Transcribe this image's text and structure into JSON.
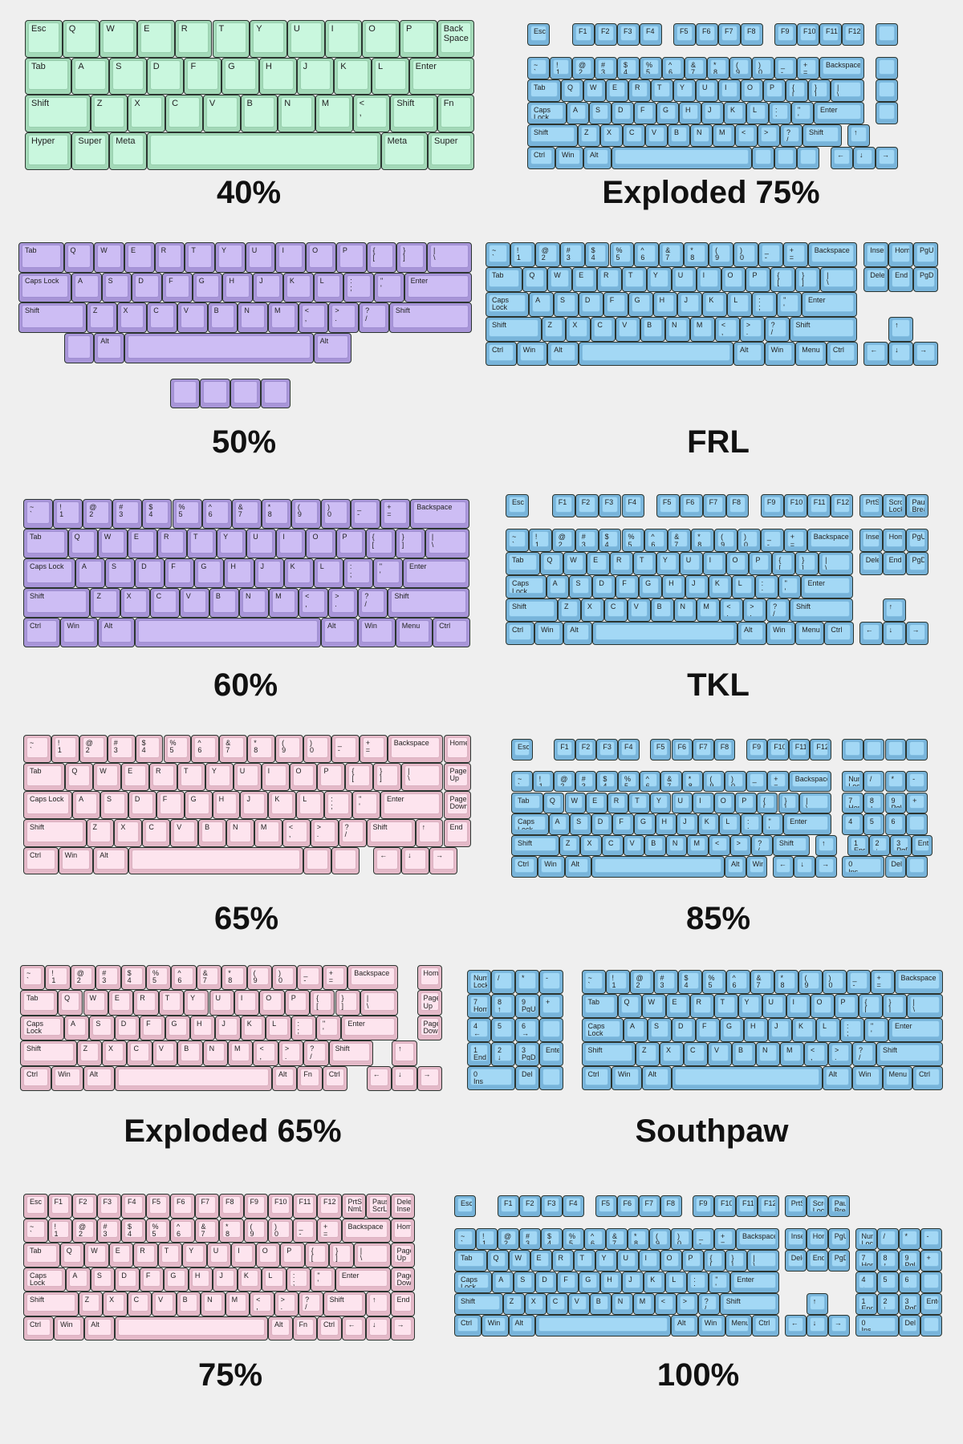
{
  "colors": {
    "green": "#c9f7de",
    "purple": "#cdbdf4",
    "blue": "#a3d8f5",
    "pink": "#fde4ee",
    "background": "#efefef"
  },
  "library": {
    "num": [
      "~\n`",
      "!\n1",
      "@\n2",
      "#\n3",
      "$\n4",
      "%\n5",
      "^\n6",
      "&\n7",
      "*\n8",
      "(\n9",
      ")\n0",
      "_\n-",
      "+\n="
    ],
    "top": [
      "Tab::1.5",
      "Q",
      "W",
      "E",
      "R",
      "T",
      "Y",
      "U",
      "I",
      "O",
      "P",
      "{\n[",
      "}\n]"
    ],
    "home": [
      "Caps Lock::1.75",
      "A",
      "S",
      "D",
      "F",
      "G",
      "H",
      "J",
      "K",
      "L",
      ":\n;",
      "\"\n'"
    ],
    "bot": [
      "Shift::2.25",
      "Z",
      "X",
      "C",
      "V",
      "B",
      "N",
      "M",
      "<\n,",
      ">\n.",
      "?\n/"
    ],
    "mods": [
      "Ctrl::1.25",
      "Win::1.25",
      "Alt::1.25",
      "::6.25",
      "Alt::1.25",
      "Win::1.25",
      "Menu::1.25",
      "Ctrl::1.25"
    ],
    "fn": [
      "Esc",
      "__1",
      "F1",
      "F2",
      "F3",
      "F4",
      "__0.5",
      "F5",
      "F6",
      "F7",
      "F8",
      "__0.5",
      "F9",
      "F10",
      "F11",
      "F12"
    ]
  },
  "keyboards": [
    {
      "title": "40%",
      "color": "green",
      "rows": [
        [
          "Esc",
          "Q",
          "W",
          "E",
          "R",
          "T",
          "Y",
          "U",
          "I",
          "O",
          "P",
          "Back\nSpace"
        ],
        [
          "Tab::1.25",
          "A",
          "S",
          "D",
          "F",
          "G",
          "H",
          "J",
          "K",
          "L",
          "Enter::1.75"
        ],
        [
          "Shift::1.75",
          "Z",
          "X",
          "C",
          "V",
          "B",
          "N",
          "M",
          "<\n,",
          "Shift::1.25",
          "Fn"
        ],
        [
          "Hyper::1.25",
          "Super",
          "Meta",
          "::6.25",
          "Meta::1.25",
          "Super::1.25"
        ]
      ]
    },
    {
      "title": "Exploded 75%",
      "color": "blue",
      "rows": [
        [
          "=>fn",
          "__0.5",
          ""
        ],
        0.5,
        [
          "=>num",
          "Backspace::2",
          "__0.5",
          ""
        ],
        [
          "=>top",
          "|\n\\::1.5",
          "__0.5",
          ""
        ],
        [
          "=>home",
          "Enter::2.25",
          "__0.5",
          ""
        ],
        [
          "=>bot",
          "Shift::1.75",
          "__0.25",
          "↑"
        ],
        [
          "Ctrl::1.25",
          "Win::1.25",
          "Alt::1.25",
          "::6.25",
          "",
          "",
          "",
          "__0.5",
          "←",
          "↓",
          "→"
        ]
      ]
    },
    {
      "title": "50%",
      "color": "purple",
      "rows": [
        [
          "=>top",
          "|\n\\::1.5"
        ],
        [
          "=>home",
          "Enter::2.25"
        ],
        [
          "=>bot",
          "Shift::2.75"
        ],
        [
          "__1.5",
          "",
          "Alt",
          "::6.25",
          "Alt::1.25"
        ],
        0.5,
        [
          "__5",
          "",
          "",
          "",
          ""
        ]
      ]
    },
    {
      "title": "FRL",
      "color": "blue",
      "rows": [
        [
          "=>num",
          "Backspace::2",
          "__0.25",
          "Insert",
          "Home",
          "PgUp"
        ],
        [
          "=>top",
          "|\n\\::1.5",
          "__0.25",
          "Delete",
          "End",
          "PgDn"
        ],
        [
          "=>home",
          "Enter::2.25"
        ],
        [
          "=>bot",
          "Shift::2.75",
          "__1.25",
          "↑"
        ],
        [
          "=>mods",
          "__0.25",
          "←",
          "↓",
          "→"
        ]
      ]
    },
    {
      "title": "60%",
      "color": "purple",
      "rows": [
        [
          "=>num",
          "Backspace::2"
        ],
        [
          "=>top",
          "|\n\\::1.5"
        ],
        [
          "=>home",
          "Enter::2.25"
        ],
        [
          "=>bot",
          "Shift::2.75"
        ],
        [
          "=>mods"
        ]
      ]
    },
    {
      "title": "TKL",
      "color": "blue",
      "rows": [
        [
          "=>fn",
          "__0.25",
          "PrtSc",
          "Scroll\nLock",
          "Pause\nBreak"
        ],
        0.5,
        [
          "=>num",
          "Backspace::2",
          "__0.25",
          "Insert",
          "Home",
          "PgUp"
        ],
        [
          "=>top",
          "|\n\\::1.5",
          "__0.25",
          "Delete",
          "End",
          "PgDn"
        ],
        [
          "=>home",
          "Enter::2.25"
        ],
        [
          "=>bot",
          "Shift::2.75",
          "__1.25",
          "↑"
        ],
        [
          "=>mods",
          "__0.25",
          "←",
          "↓",
          "→"
        ]
      ]
    },
    {
      "title": "65%",
      "color": "pink",
      "rows": [
        [
          "=>num",
          "Backspace::2",
          "Home"
        ],
        [
          "=>top",
          "|\n\\::1.5",
          "Page\nUp"
        ],
        [
          "=>home",
          "Enter::2.25",
          "Page\nDown"
        ],
        [
          "=>bot",
          "Shift::1.75",
          "↑",
          "End"
        ],
        [
          "Ctrl::1.25",
          "Win::1.25",
          "Alt::1.25",
          "::6.25",
          "",
          "",
          "__0.5",
          "←",
          "↓",
          "→"
        ]
      ]
    },
    {
      "title": "85%",
      "color": "blue",
      "rows": [
        [
          "=>fn",
          "__0.5",
          "",
          "",
          "",
          ""
        ],
        0.5,
        [
          "=>num",
          "Backspace::2",
          "__0.5",
          "Num\nLock",
          "/",
          "*",
          "-"
        ],
        [
          "=>top",
          "|\n\\::1.5",
          "__0.5",
          "7\nHome",
          "8\n↑",
          "9\nPgUp",
          "+"
        ],
        [
          "=>home",
          "Enter::2.25",
          "__0.5",
          "4\n←",
          "5",
          "6\n→",
          ""
        ],
        [
          "=>bot",
          "Shift::1.75",
          "__0.25",
          "↑",
          "__0.5",
          "1\nEnd",
          "2\n↓",
          "3\nPgDn",
          "Enter"
        ],
        [
          "Ctrl::1.25",
          "Win::1.25",
          "Alt::1.25",
          "::6.25",
          "Alt",
          "Win",
          "__0.25",
          "←",
          "↓",
          "→",
          "__0.25",
          "0\nIns::2",
          "Del",
          ""
        ]
      ]
    },
    {
      "title": "Exploded 65%",
      "color": "pink",
      "rows": [
        [
          "=>num",
          "Backspace::2",
          "__0.75",
          "Home"
        ],
        [
          "=>top",
          "|\n\\::1.5",
          "__0.75",
          "Page\nUp"
        ],
        [
          "=>home",
          "Enter::2.25",
          "__0.75",
          "Page\nDown"
        ],
        [
          "=>bot",
          "Shift::1.75",
          "__0.75",
          "↑"
        ],
        [
          "Ctrl::1.25",
          "Win::1.25",
          "Alt::1.25",
          "::6.25",
          "Alt",
          "Fn",
          "Ctrl",
          "__0.75",
          "←",
          "↓",
          "→"
        ]
      ]
    },
    {
      "title": "Southpaw",
      "color": "blue",
      "rows": [
        [
          "Num\nLock",
          "/",
          "*",
          "-",
          "__0.75",
          "=>num",
          "Backspace::2"
        ],
        [
          "7\nHome",
          "8\n↑",
          "9\nPgUp",
          "+",
          "__0.75",
          "=>top",
          "|\n\\::1.5"
        ],
        [
          "4\n←",
          "5",
          "6\n→",
          "",
          "__0.75",
          "=>home",
          "Enter::2.25"
        ],
        [
          "1\nEnd",
          "2\n↓",
          "3\nPgDn",
          "Enter",
          "__0.75",
          "=>bot",
          "Shift::2.75"
        ],
        [
          "0\nIns::2",
          "Del",
          "",
          "__0.75",
          "=>mods"
        ]
      ]
    },
    {
      "title": "75%",
      "color": "pink",
      "rows": [
        [
          "Esc",
          "F1",
          "F2",
          "F3",
          "F4",
          "F5",
          "F6",
          "F7",
          "F8",
          "F9",
          "F10",
          "F11",
          "F12",
          "PrtSc\nNmLk",
          "Pause\nScrLk",
          "Delete\nInsert"
        ],
        [
          "=>num",
          "Backspace::2",
          "Home"
        ],
        [
          "=>top",
          "|\n\\::1.5",
          "Page\nUp"
        ],
        [
          "=>home",
          "Enter::2.25",
          "Page\nDown"
        ],
        [
          "=>bot",
          "Shift::1.75",
          "↑",
          "End"
        ],
        [
          "Ctrl::1.25",
          "Win::1.25",
          "Alt::1.25",
          "::6.25",
          "Alt",
          "Fn",
          "Ctrl",
          "←",
          "↓",
          "→"
        ]
      ]
    },
    {
      "title": "100%",
      "color": "blue",
      "rows": [
        [
          "=>fn",
          "__0.25",
          "PrtSc",
          "Scroll\nLock",
          "Pause\nBreak"
        ],
        0.5,
        [
          "=>num",
          "Backspace::2",
          "__0.25",
          "Insert",
          "Home",
          "PgUp",
          "__0.25",
          "Num\nLock",
          "/",
          "*",
          "-"
        ],
        [
          "=>top",
          "|\n\\::1.5",
          "__0.25",
          "Delete",
          "End",
          "PgDn",
          "__0.25",
          "7\nHome",
          "8\n↑",
          "9\nPgUp",
          "+"
        ],
        [
          "=>home",
          "Enter::2.25",
          "__3.5",
          "4\n←",
          "5",
          "6\n→",
          ""
        ],
        [
          "=>bot",
          "Shift::2.75",
          "__1.25",
          "↑",
          "__1.25",
          "1\nEnd",
          "2\n↓",
          "3\nPgDn",
          "Enter"
        ],
        [
          "=>mods",
          "__0.25",
          "←",
          "↓",
          "→",
          "__0.25",
          "0\nIns::2",
          "Del",
          ""
        ]
      ]
    }
  ]
}
